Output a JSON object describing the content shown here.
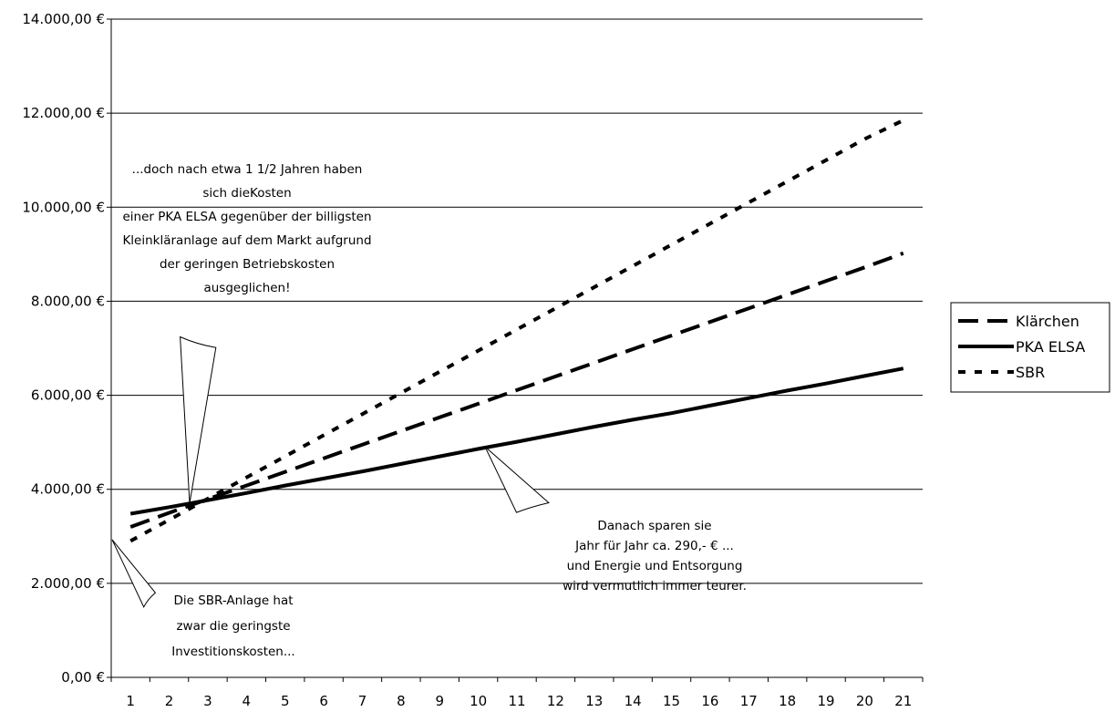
{
  "chart_data": {
    "type": "line",
    "title": "",
    "xlabel": "",
    "ylabel": "",
    "categories": [
      "1",
      "2",
      "3",
      "4",
      "5",
      "6",
      "7",
      "8",
      "9",
      "10",
      "11",
      "12",
      "13",
      "14",
      "15",
      "16",
      "17",
      "18",
      "19",
      "20",
      "21"
    ],
    "ylim": [
      0,
      14000
    ],
    "y_ticks": [
      {
        "value": 0,
        "label": "0,00 €"
      },
      {
        "value": 2000,
        "label": "2.000,00 €"
      },
      {
        "value": 4000,
        "label": "4.000,00 €"
      },
      {
        "value": 6000,
        "label": "6.000,00 €"
      },
      {
        "value": 8000,
        "label": "8.000,00 €"
      },
      {
        "value": 10000,
        "label": "10.000,00 €"
      },
      {
        "value": 12000,
        "label": "12.000,00 €"
      },
      {
        "value": 14000,
        "label": "14.000,00 €"
      }
    ],
    "grid": "horizontal",
    "legend_position": "right",
    "series": [
      {
        "name": "Klärchen",
        "style": "long-dash",
        "values": [
          3200,
          3500,
          3790,
          4080,
          4370,
          4660,
          4950,
          5240,
          5530,
          5820,
          6110,
          6400,
          6690,
          6980,
          7270,
          7560,
          7850,
          8140,
          8430,
          8720,
          9020
        ]
      },
      {
        "name": "PKA ELSA",
        "style": "solid",
        "values": [
          3480,
          3620,
          3770,
          3920,
          4080,
          4230,
          4380,
          4540,
          4700,
          4860,
          5010,
          5170,
          5330,
          5480,
          5620,
          5780,
          5940,
          6100,
          6250,
          6410,
          6570
        ]
      },
      {
        "name": "SBR",
        "style": "short-dash",
        "values": [
          2900,
          3350,
          3800,
          4250,
          4700,
          5150,
          5600,
          6050,
          6500,
          6950,
          7400,
          7850,
          8300,
          8750,
          9200,
          9650,
          10100,
          10550,
          11000,
          11450,
          11850
        ]
      }
    ],
    "annotations": [
      {
        "id": "bubble-payback",
        "lines": [
          "...doch nach etwa 1 1/2 Jahren haben",
          "sich dieKosten",
          "einer PKA ELSA gegenüber der billigsten",
          "Kleinkläranlage auf dem Markt aufgrund",
          "der geringen Betriebskosten",
          "ausgeglichen!"
        ]
      },
      {
        "id": "bubble-savings",
        "lines": [
          "Danach sparen sie",
          "Jahr für Jahr ca. 290,- € ...",
          "und Energie und Entsorgung",
          "wird vermutlich immer teurer."
        ]
      },
      {
        "id": "bubble-sbr",
        "lines": [
          "Die SBR-Anlage hat",
          "zwar die geringste",
          "Investitionskosten..."
        ]
      }
    ]
  }
}
